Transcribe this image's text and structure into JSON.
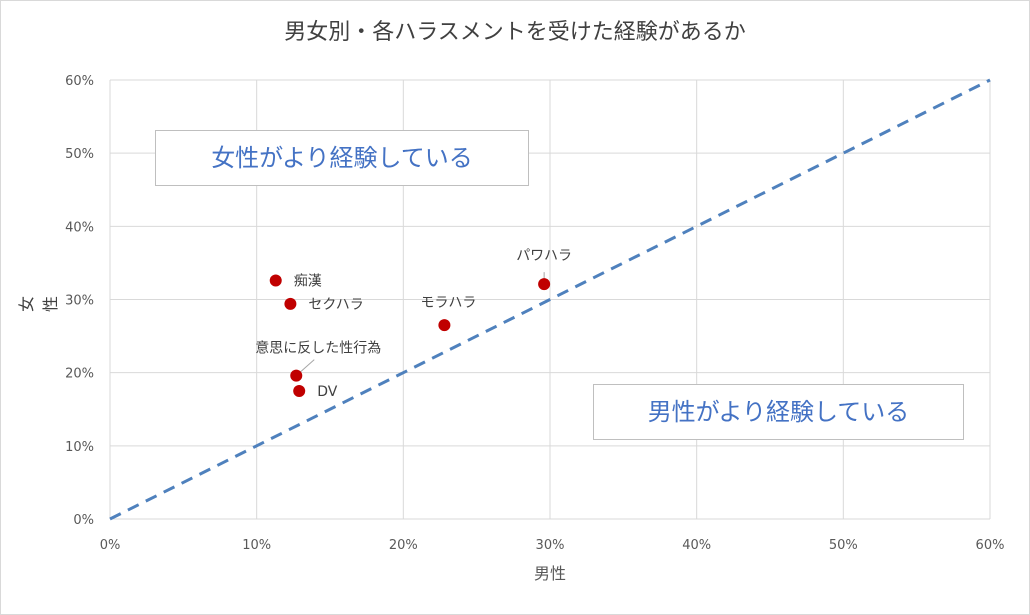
{
  "chart_data": {
    "type": "scatter",
    "title": "男女別・各ハラスメントを受けた経験があるか",
    "xlabel": "男性",
    "ylabel": "女性",
    "xlim": [
      0,
      60
    ],
    "ylim": [
      0,
      60
    ],
    "x_ticks": [
      "0%",
      "10%",
      "20%",
      "30%",
      "40%",
      "50%",
      "60%"
    ],
    "y_ticks": [
      "0%",
      "10%",
      "20%",
      "30%",
      "40%",
      "50%",
      "60%"
    ],
    "grid": true,
    "points": [
      {
        "label": "痴漢",
        "x": 11.3,
        "y": 32.6
      },
      {
        "label": "セクハラ",
        "x": 12.3,
        "y": 29.4
      },
      {
        "label": "モラハラ",
        "x": 22.8,
        "y": 26.5
      },
      {
        "label": "パワハラ",
        "x": 29.6,
        "y": 32.1
      },
      {
        "label": "意思に反した性行為",
        "x": 12.7,
        "y": 19.6
      },
      {
        "label": "DV",
        "x": 12.9,
        "y": 17.5
      }
    ],
    "reference_line": {
      "from": [
        0,
        0
      ],
      "to": [
        60,
        60
      ],
      "style": "dashed"
    },
    "annotations": {
      "upper": "女性がより経験している",
      "lower": "男性がより経験している"
    },
    "colors": {
      "points": "#c00000",
      "line": "#4f81bd",
      "annotation_text": "#4472c4",
      "grid": "#d9d9d9"
    }
  }
}
